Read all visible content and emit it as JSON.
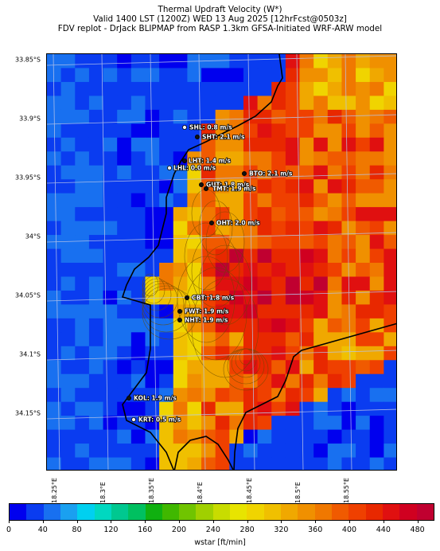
{
  "header": {
    "line1": "Thermal Updraft Velocity (W*)",
    "line2": "Valid 1400 LST (1200Z) WED 13 Aug 2025 [12hrFcst@0503z]",
    "line3": "FDV replot - DrJack BLIPMAP from RASP 1.3km GFSA-Initiated WRF-ARW model"
  },
  "axes": {
    "y_labels": [
      "33.85°S",
      "33.9°S",
      "33.95°S",
      "34°S",
      "34.05°S",
      "34.1°S",
      "34.15°S"
    ],
    "x_labels": [
      "18.25°E",
      "18.3°E",
      "18.35°E",
      "18.4°E",
      "18.45°E",
      "18.5°E",
      "18.55°E"
    ]
  },
  "stations": [
    {
      "label": "SHL: 0.8 m/s",
      "value": 0.8
    },
    {
      "label": "SHT: 2.1 m/s",
      "value": 2.1
    },
    {
      "label": "LHT: 1.4 m/s",
      "value": 1.4
    },
    {
      "label": "LHL: 0.0 m/s",
      "value": 0.0
    },
    {
      "label": "BTO: 2.1 m/s",
      "value": 2.1
    },
    {
      "label": "GUT: 1.8 m/s",
      "value": 1.8
    },
    {
      "label": "TMT: 1.9 m/s",
      "value": 1.9
    },
    {
      "label": "OHT: 2.0 m/s",
      "value": 2.0
    },
    {
      "label": "CBT: 1.8 m/s",
      "value": 1.8
    },
    {
      "label": "FWT: 1.9 m/s",
      "value": 1.9
    },
    {
      "label": "NHT: 1.9 m/s",
      "value": 1.9
    },
    {
      "label": "KOL: 1.9 m/s",
      "value": 1.9
    },
    {
      "label": "KRT: 0.5 m/s",
      "value": 0.5
    }
  ],
  "colorbar": {
    "label": "wstar [ft/min]",
    "ticks": [
      "0",
      "40",
      "80",
      "120",
      "160",
      "200",
      "240",
      "280",
      "320",
      "360",
      "400",
      "440",
      "480"
    ],
    "colors": [
      "#0000ee",
      "#0a3cf0",
      "#1870f0",
      "#1aa0f0",
      "#00d0f0",
      "#00d8c0",
      "#00c890",
      "#00c060",
      "#10b010",
      "#40b800",
      "#70c400",
      "#a0d000",
      "#c8dc00",
      "#e8e400",
      "#f0d400",
      "#f0c000",
      "#f0a800",
      "#f09000",
      "#f07800",
      "#f05a00",
      "#ef4000",
      "#e82800",
      "#e01010",
      "#d00020",
      "#c00030"
    ]
  },
  "chart_data": {
    "type": "heatmap",
    "title": "Thermal Updraft Velocity (W*)",
    "colorbar_label": "wstar [ft/min]",
    "colorbar_range": [
      0,
      500
    ],
    "colorbar_ticks": [
      0,
      40,
      80,
      120,
      160,
      200,
      240,
      280,
      320,
      360,
      400,
      440,
      480
    ],
    "lat_ticks": [
      -33.85,
      -33.9,
      -33.95,
      -34.0,
      -34.05,
      -34.1,
      -34.15
    ],
    "lon_ticks": [
      18.25,
      18.3,
      18.35,
      18.4,
      18.45,
      18.5,
      18.55
    ],
    "stations": [
      {
        "id": "SHL",
        "wstar_ms": 0.8
      },
      {
        "id": "SHT",
        "wstar_ms": 2.1
      },
      {
        "id": "LHT",
        "wstar_ms": 1.4
      },
      {
        "id": "LHL",
        "wstar_ms": 0.0
      },
      {
        "id": "BTO",
        "wstar_ms": 2.1
      },
      {
        "id": "GUT",
        "wstar_ms": 1.8
      },
      {
        "id": "TMT",
        "wstar_ms": 1.9
      },
      {
        "id": "OHT",
        "wstar_ms": 2.0
      },
      {
        "id": "CBT",
        "wstar_ms": 1.8
      },
      {
        "id": "FWT",
        "wstar_ms": 1.9
      },
      {
        "id": "NHT",
        "wstar_ms": 1.9
      },
      {
        "id": "KOL",
        "wstar_ms": 1.9
      },
      {
        "id": "KRT",
        "wstar_ms": 0.5
      }
    ]
  }
}
